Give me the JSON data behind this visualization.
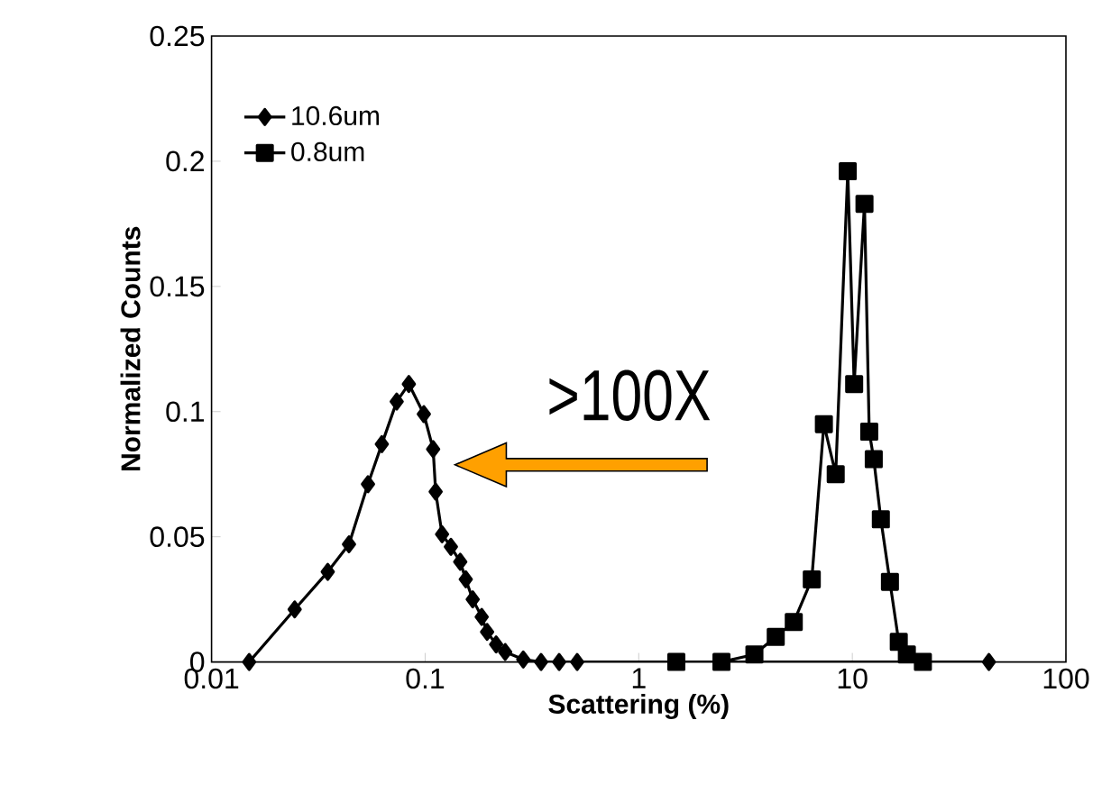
{
  "chart_data": {
    "type": "line",
    "xlabel": "Scattering (%)",
    "ylabel": "Normalized Counts",
    "log": "x",
    "xlim": [
      0.01,
      100
    ],
    "xticks": [
      0.01,
      0.1,
      1,
      10,
      100
    ],
    "ylim": [
      0,
      0.25
    ],
    "yticks": [
      0,
      0.05,
      0.1,
      0.15,
      0.2,
      0.25
    ],
    "grid": false,
    "legend": "top left",
    "line_style": "solid",
    "annotations": [
      ">100X"
    ],
    "series": [
      {
        "name": "10.6um",
        "color": "#000000",
        "marker": "diamond",
        "x": [
          0.015,
          0.0245,
          0.035,
          0.044,
          0.054,
          0.0627,
          0.0736,
          0.0839,
          0.0986,
          0.109,
          0.112,
          0.12,
          0.132,
          0.146,
          0.155,
          0.167,
          0.184,
          0.195,
          0.215,
          0.237,
          0.288,
          0.349,
          0.424,
          0.515,
          43.6
        ],
        "values": [
          0,
          0.021,
          0.036,
          0.047,
          0.071,
          0.087,
          0.104,
          0.111,
          0.099,
          0.085,
          0.068,
          0.051,
          0.046,
          0.04,
          0.033,
          0.025,
          0.018,
          0.012,
          0.007,
          0.004,
          0.001,
          0,
          0,
          0,
          0
        ]
      },
      {
        "name": "0.8um",
        "color": "#000000",
        "marker": "square",
        "x": [
          1.5,
          2.44,
          3.48,
          4.38,
          5.32,
          6.46,
          7.36,
          8.36,
          9.52,
          10.2,
          11.4,
          12.0,
          12.6,
          13.6,
          15.0,
          16.5,
          18.0,
          21.4
        ],
        "values": [
          0,
          0,
          0.003,
          0.01,
          0.016,
          0.033,
          0.095,
          0.075,
          0.196,
          0.111,
          0.183,
          0.092,
          0.081,
          0.057,
          0.032,
          0.008,
          0.003,
          0
        ]
      }
    ]
  }
}
